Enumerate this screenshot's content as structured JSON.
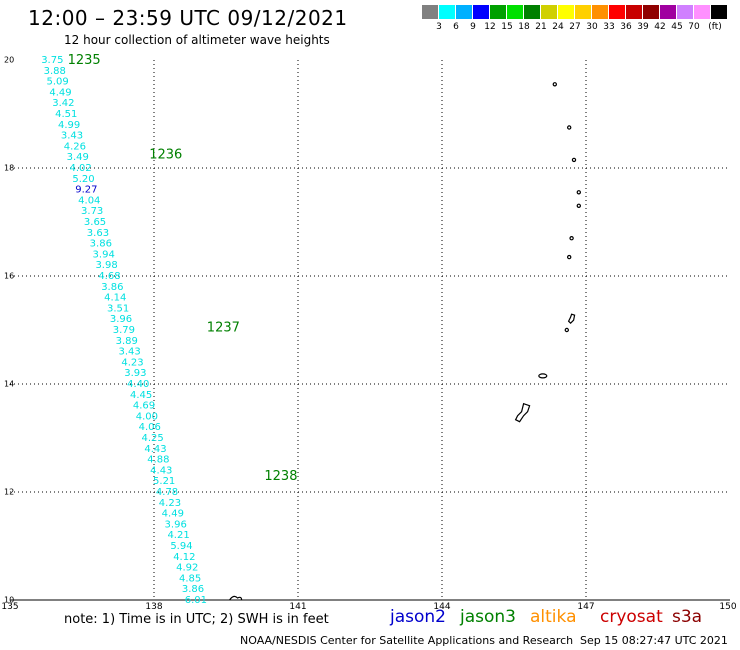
{
  "header": {
    "title": "12:00 – 23:59 UTC 09/12/2021",
    "subtitle": "12 hour collection of altimeter wave heights"
  },
  "scale": {
    "unit": "(ft)",
    "boxes": [
      {
        "color": "#808080",
        "label": ""
      },
      {
        "color": "#00ffff",
        "label": "3"
      },
      {
        "color": "#00b0ff",
        "label": "6"
      },
      {
        "color": "#0000ff",
        "label": "9"
      },
      {
        "color": "#00a000",
        "label": "12"
      },
      {
        "color": "#00e000",
        "label": "15"
      },
      {
        "color": "#008000",
        "label": "18"
      },
      {
        "color": "#d0d000",
        "label": "21"
      },
      {
        "color": "#ffff00",
        "label": "24"
      },
      {
        "color": "#ffd000",
        "label": "27"
      },
      {
        "color": "#ff9000",
        "label": "30"
      },
      {
        "color": "#ff0000",
        "label": "33"
      },
      {
        "color": "#c80000",
        "label": "36"
      },
      {
        "color": "#900000",
        "label": "39"
      },
      {
        "color": "#a000a0",
        "label": "42"
      },
      {
        "color": "#d080ff",
        "label": "45"
      },
      {
        "color": "#ff90ff",
        "label": "70"
      },
      {
        "color": "#000000",
        "label": ""
      }
    ]
  },
  "axes": {
    "lon_ticks": [
      "135",
      "138",
      "141",
      "144",
      "147",
      "150"
    ],
    "lat_ticks": [
      "20",
      "18",
      "16",
      "14",
      "12",
      "10"
    ]
  },
  "track": {
    "times": [
      {
        "label": "1235",
        "lon": 136.2,
        "lat": 20.0
      },
      {
        "label": "1236",
        "lon": 137.9,
        "lat": 18.25
      },
      {
        "label": "1237",
        "lon": 139.1,
        "lat": 15.05
      },
      {
        "label": "1238",
        "lon": 140.3,
        "lat": 12.3
      }
    ],
    "points": [
      {
        "lon": 135.65,
        "lat": 20.0,
        "swh": "3.75",
        "color": "#00e0e0"
      },
      {
        "lon": 135.7,
        "lat": 19.8,
        "swh": "3.88",
        "color": "#00e0e0"
      },
      {
        "lon": 135.76,
        "lat": 19.6,
        "swh": "5.09",
        "color": "#00e0e0"
      },
      {
        "lon": 135.82,
        "lat": 19.4,
        "swh": "4.49",
        "color": "#00e0e0"
      },
      {
        "lon": 135.88,
        "lat": 19.2,
        "swh": "3.42",
        "color": "#00e0e0"
      },
      {
        "lon": 135.94,
        "lat": 19.0,
        "swh": "4.51",
        "color": "#00e0e0"
      },
      {
        "lon": 136.0,
        "lat": 18.8,
        "swh": "4.99",
        "color": "#00e0e0"
      },
      {
        "lon": 136.06,
        "lat": 18.6,
        "swh": "3.43",
        "color": "#00e0e0"
      },
      {
        "lon": 136.12,
        "lat": 18.4,
        "swh": "4.26",
        "color": "#00e0e0"
      },
      {
        "lon": 136.18,
        "lat": 18.2,
        "swh": "3.49",
        "color": "#00e0e0"
      },
      {
        "lon": 136.24,
        "lat": 18.0,
        "swh": "4.02",
        "color": "#00e0e0"
      },
      {
        "lon": 136.3,
        "lat": 17.8,
        "swh": "5.20",
        "color": "#00e0e0"
      },
      {
        "lon": 136.36,
        "lat": 17.6,
        "swh": "9.27",
        "color": "#0000cc"
      },
      {
        "lon": 136.42,
        "lat": 17.4,
        "swh": "4.04",
        "color": "#00e0e0"
      },
      {
        "lon": 136.48,
        "lat": 17.2,
        "swh": "3.73",
        "color": "#00e0e0"
      },
      {
        "lon": 136.54,
        "lat": 17.0,
        "swh": "3.65",
        "color": "#00e0e0"
      },
      {
        "lon": 136.6,
        "lat": 16.8,
        "swh": "3.63",
        "color": "#00e0e0"
      },
      {
        "lon": 136.66,
        "lat": 16.6,
        "swh": "3.86",
        "color": "#00e0e0"
      },
      {
        "lon": 136.72,
        "lat": 16.4,
        "swh": "3.94",
        "color": "#00e0e0"
      },
      {
        "lon": 136.78,
        "lat": 16.2,
        "swh": "3.98",
        "color": "#00e0e0"
      },
      {
        "lon": 136.84,
        "lat": 16.0,
        "swh": "4.68",
        "color": "#00e0e0"
      },
      {
        "lon": 136.9,
        "lat": 15.8,
        "swh": "3.86",
        "color": "#00e0e0"
      },
      {
        "lon": 136.96,
        "lat": 15.6,
        "swh": "4.14",
        "color": "#00e0e0"
      },
      {
        "lon": 137.02,
        "lat": 15.4,
        "swh": "3.51",
        "color": "#00e0e0"
      },
      {
        "lon": 137.08,
        "lat": 15.2,
        "swh": "3.96",
        "color": "#00e0e0"
      },
      {
        "lon": 137.14,
        "lat": 15.0,
        "swh": "3.79",
        "color": "#00e0e0"
      },
      {
        "lon": 137.2,
        "lat": 14.8,
        "swh": "3.89",
        "color": "#00e0e0"
      },
      {
        "lon": 137.26,
        "lat": 14.6,
        "swh": "3.43",
        "color": "#00e0e0"
      },
      {
        "lon": 137.32,
        "lat": 14.4,
        "swh": "4.23",
        "color": "#00e0e0"
      },
      {
        "lon": 137.38,
        "lat": 14.2,
        "swh": "3.93",
        "color": "#00e0e0"
      },
      {
        "lon": 137.44,
        "lat": 14.0,
        "swh": "4.40",
        "color": "#00e0e0"
      },
      {
        "lon": 137.5,
        "lat": 13.8,
        "swh": "4.45",
        "color": "#00e0e0"
      },
      {
        "lon": 137.56,
        "lat": 13.6,
        "swh": "4.69",
        "color": "#00e0e0"
      },
      {
        "lon": 137.62,
        "lat": 13.4,
        "swh": "4.00",
        "color": "#00e0e0"
      },
      {
        "lon": 137.68,
        "lat": 13.2,
        "swh": "4.06",
        "color": "#00e0e0"
      },
      {
        "lon": 137.74,
        "lat": 13.0,
        "swh": "4.25",
        "color": "#00e0e0"
      },
      {
        "lon": 137.8,
        "lat": 12.8,
        "swh": "4.43",
        "color": "#00e0e0"
      },
      {
        "lon": 137.86,
        "lat": 12.6,
        "swh": "4.88",
        "color": "#00e0e0"
      },
      {
        "lon": 137.92,
        "lat": 12.4,
        "swh": "4.43",
        "color": "#00e0e0"
      },
      {
        "lon": 137.98,
        "lat": 12.2,
        "swh": "5.21",
        "color": "#00e0e0"
      },
      {
        "lon": 138.04,
        "lat": 12.0,
        "swh": "4.78",
        "color": "#00e0e0"
      },
      {
        "lon": 138.1,
        "lat": 11.8,
        "swh": "4.23",
        "color": "#00e0e0"
      },
      {
        "lon": 138.16,
        "lat": 11.6,
        "swh": "4.49",
        "color": "#00e0e0"
      },
      {
        "lon": 138.22,
        "lat": 11.4,
        "swh": "3.96",
        "color": "#00e0e0"
      },
      {
        "lon": 138.28,
        "lat": 11.2,
        "swh": "4.21",
        "color": "#00e0e0"
      },
      {
        "lon": 138.34,
        "lat": 11.0,
        "swh": "5.94",
        "color": "#00e0e0"
      },
      {
        "lon": 138.4,
        "lat": 10.8,
        "swh": "4.12",
        "color": "#00e0e0"
      },
      {
        "lon": 138.46,
        "lat": 10.6,
        "swh": "4.92",
        "color": "#00e0e0"
      },
      {
        "lon": 138.52,
        "lat": 10.4,
        "swh": "4.85",
        "color": "#00e0e0"
      },
      {
        "lon": 138.58,
        "lat": 10.2,
        "swh": "3.86",
        "color": "#00e0e0"
      },
      {
        "lon": 138.64,
        "lat": 10.0,
        "swh": "6.01",
        "color": "#00e0e0"
      }
    ]
  },
  "islands": [
    {
      "lon": 146.35,
      "lat": 19.55
    },
    {
      "lon": 146.65,
      "lat": 18.75
    },
    {
      "lon": 146.75,
      "lat": 18.15
    },
    {
      "lon": 146.85,
      "lat": 17.55
    },
    {
      "lon": 146.85,
      "lat": 17.3
    },
    {
      "lon": 146.7,
      "lat": 16.7
    },
    {
      "lon": 146.65,
      "lat": 16.35
    },
    {
      "lon": 146.7,
      "lat": 15.2
    },
    {
      "lon": 146.6,
      "lat": 15.0
    },
    {
      "lon": 146.1,
      "lat": 14.15
    },
    {
      "lon": 145.7,
      "lat": 13.45
    },
    {
      "lon": 139.7,
      "lat": 10.0
    }
  ],
  "footer": {
    "note": "note: 1) Time is in UTC; 2) SWH is in feet",
    "satellites": [
      {
        "name": "jason2",
        "color": "#0000cc"
      },
      {
        "name": "jason3",
        "color": "#008000"
      },
      {
        "name": "altika",
        "color": "#ff9000"
      },
      {
        "name": "cryosat",
        "color": "#cc0000"
      },
      {
        "name": "s3a",
        "color": "#8b0000"
      }
    ],
    "credit": "NOAA/NESDIS Center for Satellite Applications and Research",
    "timestamp": "Sep 15 08:27:47 UTC 2021"
  }
}
